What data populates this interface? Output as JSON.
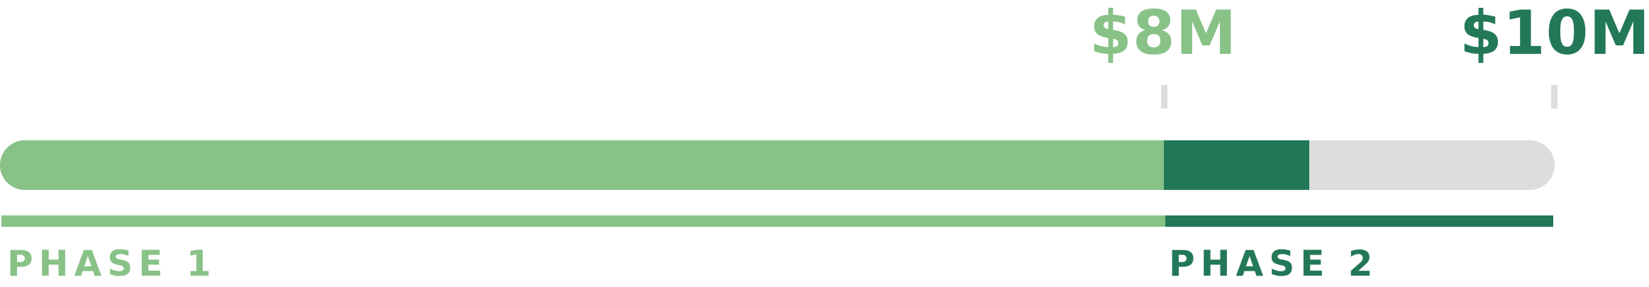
{
  "milestones": [
    {
      "amount": "$8M"
    },
    {
      "amount": "$10M"
    }
  ],
  "phases": [
    {
      "label": "PHASE 1"
    },
    {
      "label": "PHASE 2"
    }
  ],
  "progress": {
    "phase1_end_fraction": 0.8,
    "current_fraction": 0.9,
    "scale_min": "$0M",
    "scale_max": "$10M"
  },
  "colors": {
    "phase1": "#88c287",
    "phase2": "#237857",
    "track": "#dcdedd",
    "tick": "#dcdedd"
  }
}
